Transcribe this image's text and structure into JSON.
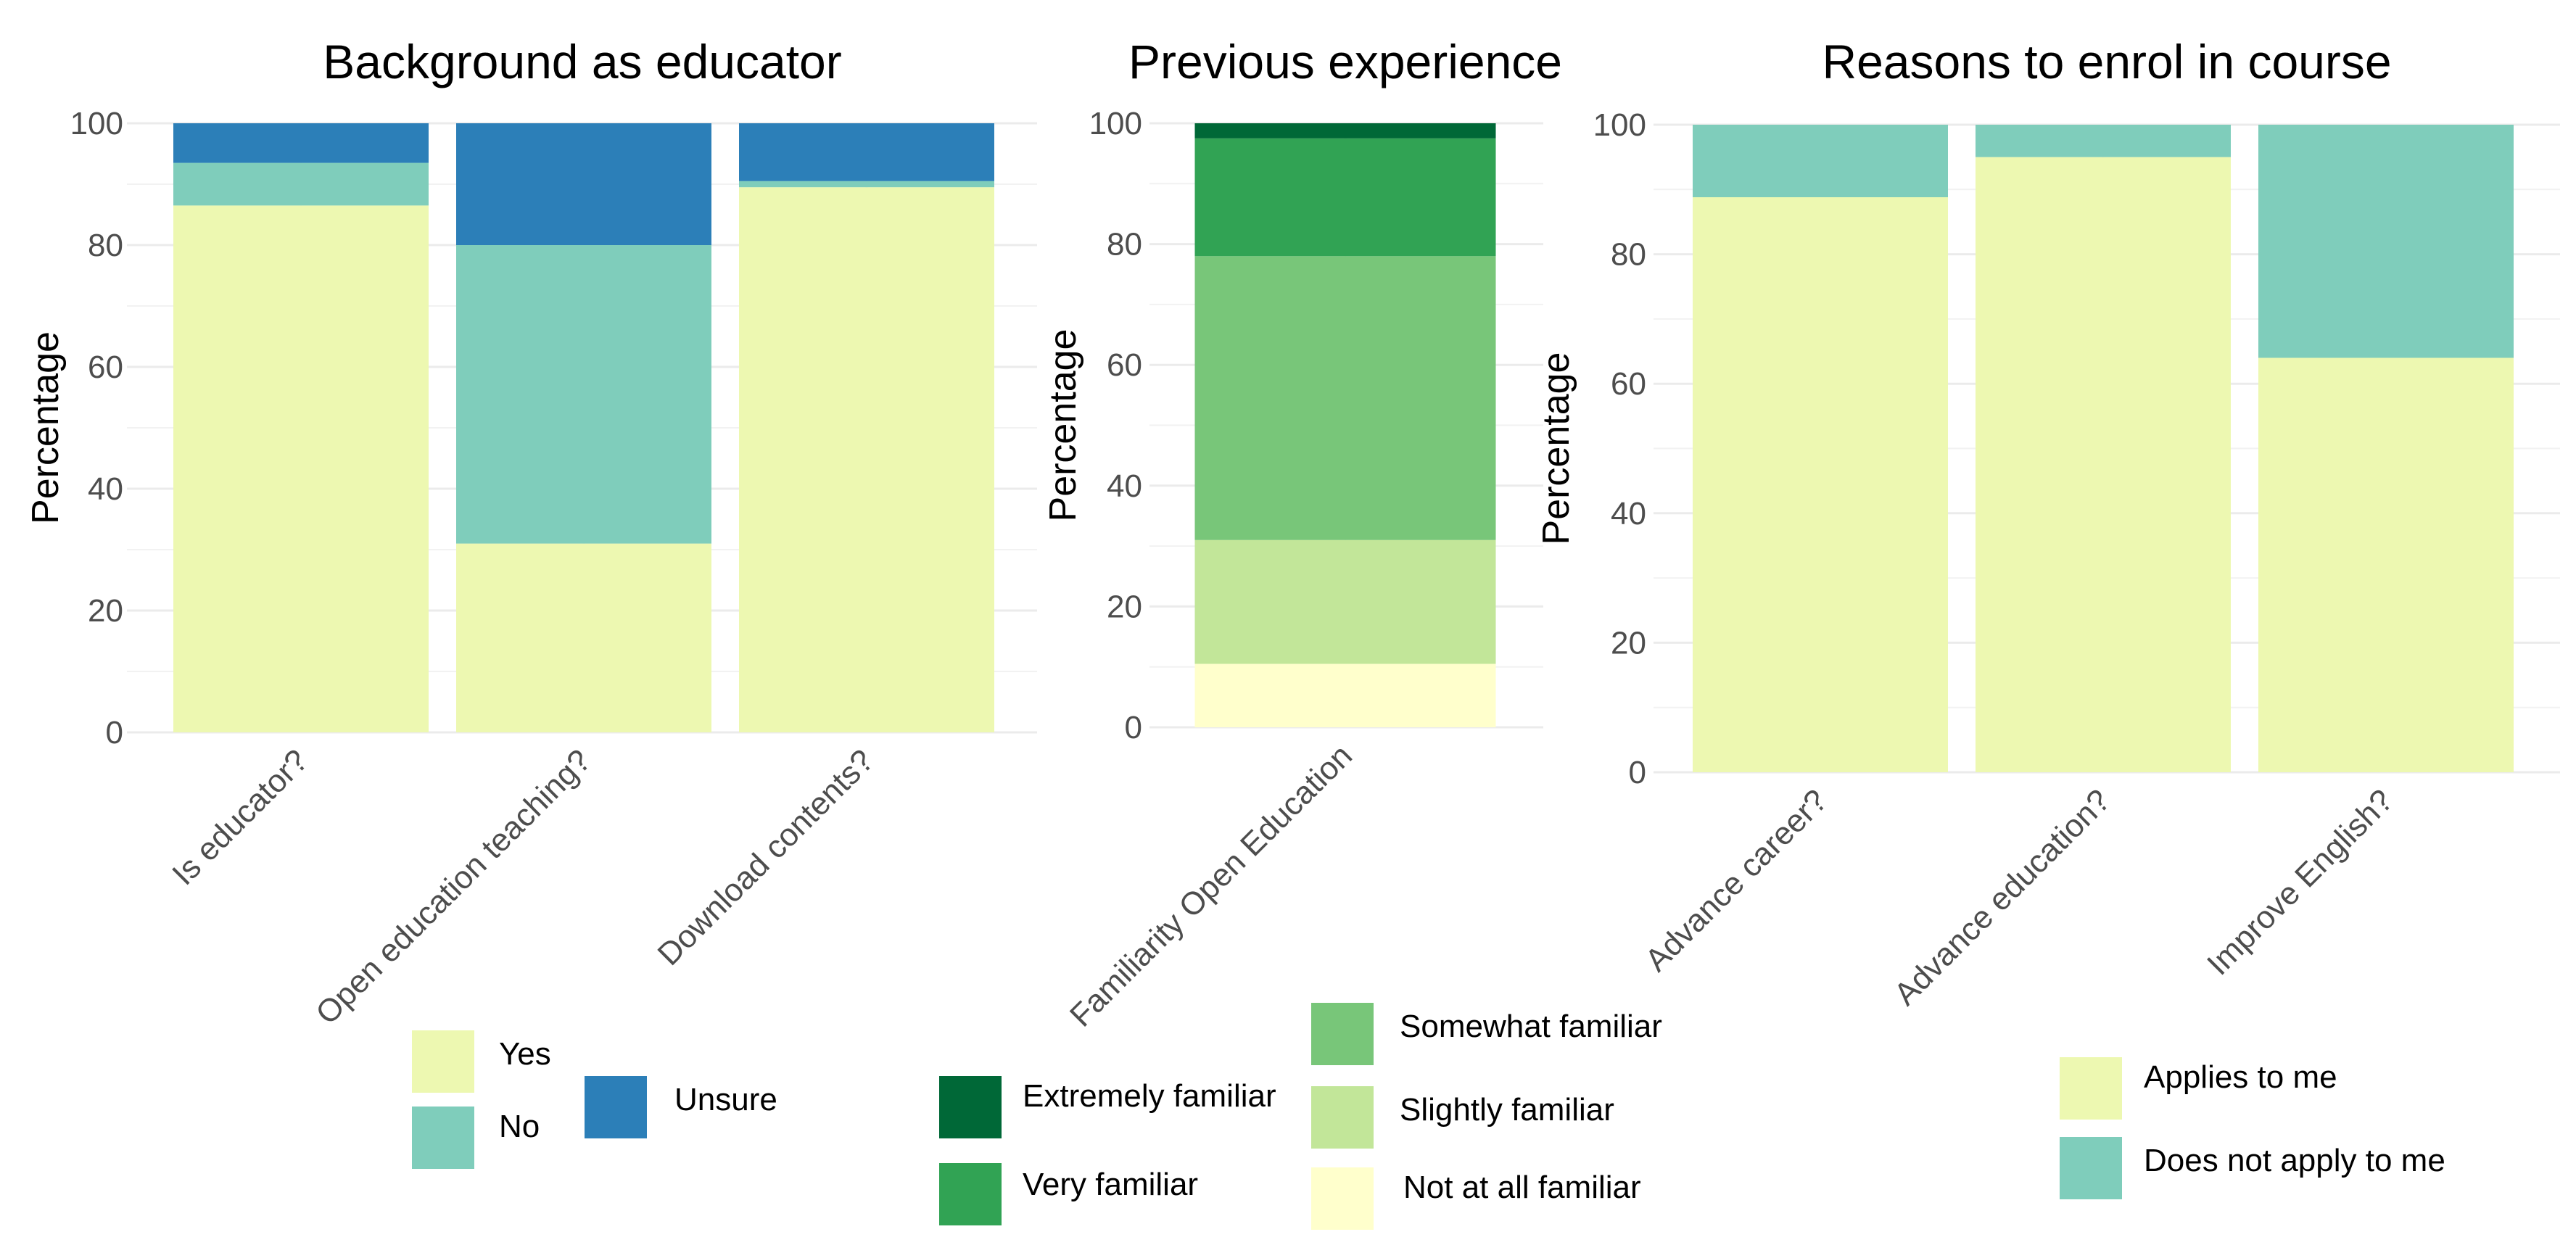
{
  "chart_data": [
    {
      "type": "bar",
      "stacked": true,
      "title": "Background as educator",
      "ylabel": "Percentage",
      "xlabel": "",
      "ylim": [
        0,
        100
      ],
      "yticks": [
        0,
        20,
        40,
        60,
        80,
        100
      ],
      "grid": true,
      "categories": [
        "Is educator?",
        "Open education teaching?",
        "Download contents?"
      ],
      "series": [
        {
          "name": "Yes",
          "color": "#edf8b1",
          "values": [
            86.5,
            31,
            89.5
          ]
        },
        {
          "name": "No",
          "color": "#7fcdbb",
          "values": [
            7,
            49,
            1
          ]
        },
        {
          "name": "Unsure",
          "color": "#2c7fb8",
          "values": [
            6.5,
            20,
            9.5
          ]
        }
      ],
      "legend": {
        "placement": "bottom",
        "entries": [
          "Yes",
          "No",
          "Unsure"
        ]
      }
    },
    {
      "type": "bar",
      "stacked": true,
      "title": "Previous experience",
      "ylabel": "Percentage",
      "xlabel": "",
      "ylim": [
        0,
        100
      ],
      "yticks": [
        0,
        20,
        40,
        60,
        80,
        100
      ],
      "grid": true,
      "categories": [
        "Familiarity Open Education"
      ],
      "series": [
        {
          "name": "Not at all familiar",
          "color": "#ffffcc",
          "values": [
            10.5
          ]
        },
        {
          "name": "Slightly familiar",
          "color": "#c2e699",
          "values": [
            20.5
          ]
        },
        {
          "name": "Somewhat familiar",
          "color": "#78c679",
          "values": [
            47
          ]
        },
        {
          "name": "Very familiar",
          "color": "#31a354",
          "values": [
            19.5
          ]
        },
        {
          "name": "Extremely familiar",
          "color": "#006837",
          "values": [
            2.5
          ]
        }
      ],
      "legend": {
        "placement": "bottom",
        "entries": [
          "Extremely familiar",
          "Very familiar",
          "Somewhat familiar",
          "Slightly familiar",
          "Not at all familiar"
        ]
      }
    },
    {
      "type": "bar",
      "stacked": true,
      "title": "Reasons to enrol in course",
      "ylabel": "Percentage",
      "xlabel": "",
      "ylim": [
        0,
        100
      ],
      "yticks": [
        0,
        20,
        40,
        60,
        80,
        100
      ],
      "grid": true,
      "categories": [
        "Advance career?",
        "Advance education?",
        "Improve English?"
      ],
      "series": [
        {
          "name": "Applies to me",
          "color": "#edf8b1",
          "values": [
            88.8,
            95,
            64
          ]
        },
        {
          "name": "Does not apply to me",
          "color": "#7fcdbb",
          "values": [
            11.2,
            5,
            36
          ]
        }
      ],
      "legend": {
        "placement": "bottom-right",
        "entries": [
          "Applies to me",
          "Does not apply to me"
        ]
      }
    }
  ]
}
